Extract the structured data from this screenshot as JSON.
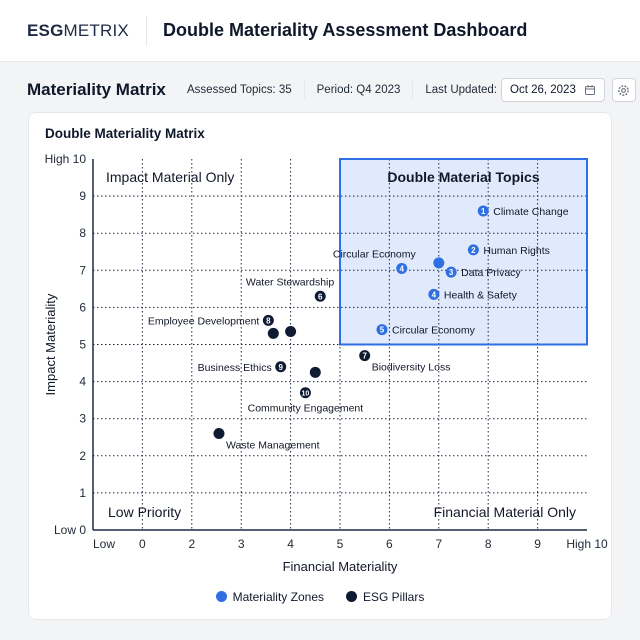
{
  "header": {
    "logo_bold": "ESG",
    "logo_light": "METRIX",
    "title": "Double Materiality Assessment Dashboard"
  },
  "toolbar": {
    "section_title": "Materiality Matrix",
    "assessed_topics": "Assessed Topics: 35",
    "period": "Period: Q4 2023",
    "last_updated_label": "Last Updated:",
    "last_updated_value": "Oct 26, 2023",
    "calendar_icon": "calendar-icon",
    "settings_icon": "gear-icon"
  },
  "colors": {
    "zone": "#2f6fe4",
    "pillar": "#0f1b33",
    "zone_fill": "#dbe6fb"
  },
  "chart_data": {
    "type": "scatter",
    "title": "Double Materiality Matrix",
    "xlabel": "Financial Materiality",
    "ylabel": "Impact Materiality",
    "xlim": [
      0,
      10
    ],
    "ylim": [
      0,
      10
    ],
    "grid": true,
    "x_tick_labels": [
      "Low",
      "0",
      "2",
      "3",
      "4",
      "5",
      "6",
      "7",
      "8",
      "9",
      "High 10"
    ],
    "y_tick_labels": [
      "Low 0",
      "1",
      "2",
      "3",
      "4",
      "5",
      "6",
      "7",
      "8",
      "9",
      "High 10"
    ],
    "quadrants": {
      "top_left": "Impact Material Only",
      "top_right": "Double Material Topics",
      "bottom_left": "Low Priority",
      "bottom_right": "Financial Material Only"
    },
    "highlight_region": {
      "x": [
        5,
        10
      ],
      "y": [
        5,
        10
      ]
    },
    "legend": [
      {
        "name": "Materiality Zones",
        "color": "#2f6fe4"
      },
      {
        "name": "ESG Pillars",
        "color": "#0f1b33"
      }
    ],
    "legend_position": "bottom",
    "points": [
      {
        "label": "Climate Change",
        "num": "1",
        "x": 7.9,
        "y": 8.6,
        "series": "zone",
        "pos": "right"
      },
      {
        "label": "Human Rights",
        "num": "2",
        "x": 7.7,
        "y": 7.55,
        "series": "zone",
        "pos": "right"
      },
      {
        "label": "Data Privacy",
        "num": "3",
        "x": 7.25,
        "y": 6.95,
        "series": "zone",
        "pos": "right"
      },
      {
        "label": "",
        "num": "",
        "x": 7.0,
        "y": 7.2,
        "series": "zone",
        "pos": "right"
      },
      {
        "label": "Circular Economy",
        "num": "4",
        "x": 6.25,
        "y": 7.05,
        "series": "zone",
        "pos": "above-left"
      },
      {
        "label": "Health & Safety",
        "num": "4",
        "x": 6.9,
        "y": 6.35,
        "series": "zone",
        "pos": "right"
      },
      {
        "label": "Circular Economy",
        "num": "5",
        "x": 5.85,
        "y": 5.4,
        "series": "zone",
        "pos": "right"
      },
      {
        "label": "Water Stewardship",
        "num": "6",
        "x": 4.6,
        "y": 6.3,
        "series": "pillar",
        "pos": "above-left"
      },
      {
        "label": "Employee Development",
        "num": "8",
        "x": 3.55,
        "y": 5.65,
        "series": "pillar",
        "pos": "left"
      },
      {
        "label": "",
        "num": "",
        "x": 3.65,
        "y": 5.3,
        "series": "pillar",
        "pos": "right"
      },
      {
        "label": "",
        "num": "",
        "x": 4.0,
        "y": 5.35,
        "series": "pillar",
        "pos": "right"
      },
      {
        "label": "Biodiversity Loss",
        "num": "7",
        "x": 5.5,
        "y": 4.7,
        "series": "pillar",
        "pos": "below-right"
      },
      {
        "label": "Business Ethics",
        "num": "9",
        "x": 3.8,
        "y": 4.4,
        "series": "pillar",
        "pos": "left"
      },
      {
        "label": "",
        "num": "",
        "x": 4.5,
        "y": 4.25,
        "series": "pillar",
        "pos": "right"
      },
      {
        "label": "Community Engagement",
        "num": "10",
        "x": 4.3,
        "y": 3.7,
        "series": "pillar",
        "pos": "below"
      },
      {
        "label": "Waste Management",
        "num": "",
        "x": 2.55,
        "y": 2.6,
        "series": "pillar",
        "pos": "below-right"
      }
    ]
  }
}
